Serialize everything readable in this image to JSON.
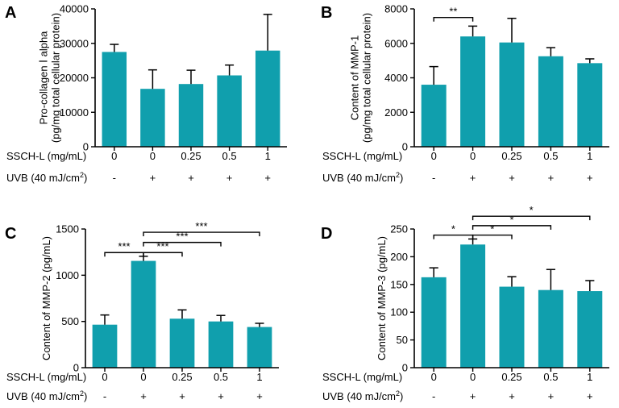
{
  "bar_color": "#109fad",
  "axis_color": "#000000",
  "table_labels": {
    "sschl": "SSCH-L (mg/mL)",
    "uvb_prefix": "UVB (40 mJ/cm",
    "uvb_sup": "2",
    "uvb_suffix": ")"
  },
  "chart_data": [
    {
      "type": "bar",
      "panel_label": "A",
      "title": "",
      "ylabel_lines": [
        "Pro-collagen Ⅰ alpha",
        "(pg/mg total cellular protein)"
      ],
      "ylim": [
        0,
        40000
      ],
      "yticks": [
        0,
        10000,
        20000,
        30000,
        40000
      ],
      "categories": [
        "0",
        "0",
        "0.25",
        "0.5",
        "1"
      ],
      "uvb": [
        "-",
        "+",
        "+",
        "+",
        "+"
      ],
      "values": [
        27500,
        16800,
        18200,
        20700,
        27900
      ],
      "errors": [
        2200,
        5500,
        4000,
        3000,
        10500
      ],
      "significance": []
    },
    {
      "type": "bar",
      "panel_label": "B",
      "title": "",
      "ylabel_lines": [
        "Content of MMP-1",
        "(pg/mg total cellular protein)"
      ],
      "ylim": [
        0,
        8000
      ],
      "yticks": [
        0,
        2000,
        4000,
        6000,
        8000
      ],
      "categories": [
        "0",
        "0",
        "0.25",
        "0.5",
        "1"
      ],
      "uvb": [
        "-",
        "+",
        "+",
        "+",
        "+"
      ],
      "values": [
        3600,
        6400,
        6050,
        5250,
        4850
      ],
      "errors": [
        1050,
        600,
        1400,
        500,
        250
      ],
      "significance": [
        {
          "from": 0,
          "to": 1,
          "level": 7500,
          "label": "**"
        }
      ]
    },
    {
      "type": "bar",
      "panel_label": "C",
      "title": "",
      "ylabel_lines": [
        "Content of MMP-2 (pg/mL)"
      ],
      "ylim": [
        0,
        1500
      ],
      "yticks": [
        0,
        500,
        1000,
        1500
      ],
      "categories": [
        "0",
        "0",
        "0.25",
        "0.5",
        "1"
      ],
      "uvb": [
        "-",
        "+",
        "+",
        "+",
        "+"
      ],
      "values": [
        465,
        1155,
        530,
        500,
        440
      ],
      "errors": [
        105,
        50,
        95,
        65,
        40
      ],
      "significance": [
        {
          "from": 0,
          "to": 1,
          "level": 1245,
          "label": "***"
        },
        {
          "from": 1,
          "to": 2,
          "level": 1245,
          "label": "***"
        },
        {
          "from": 1,
          "to": 3,
          "level": 1355,
          "label": "***"
        },
        {
          "from": 1,
          "to": 4,
          "level": 1465,
          "label": "***"
        }
      ]
    },
    {
      "type": "bar",
      "panel_label": "D",
      "title": "",
      "ylabel_lines": [
        "Content of MMP-3 (pg/mL)"
      ],
      "ylim": [
        0,
        250
      ],
      "yticks": [
        0,
        50,
        100,
        150,
        200,
        250
      ],
      "categories": [
        "0",
        "0",
        "0.25",
        "0.5",
        "1"
      ],
      "uvb": [
        "-",
        "+",
        "+",
        "+",
        "+"
      ],
      "values": [
        163,
        222,
        146,
        140,
        138
      ],
      "errors": [
        17,
        10,
        18,
        37,
        19
      ],
      "significance": [
        {
          "from": 0,
          "to": 1,
          "level": 239,
          "label": "*"
        },
        {
          "from": 1,
          "to": 2,
          "level": 239,
          "label": "*"
        },
        {
          "from": 1,
          "to": 3,
          "level": 256,
          "label": "*"
        },
        {
          "from": 1,
          "to": 4,
          "level": 273,
          "label": "*"
        }
      ]
    }
  ]
}
